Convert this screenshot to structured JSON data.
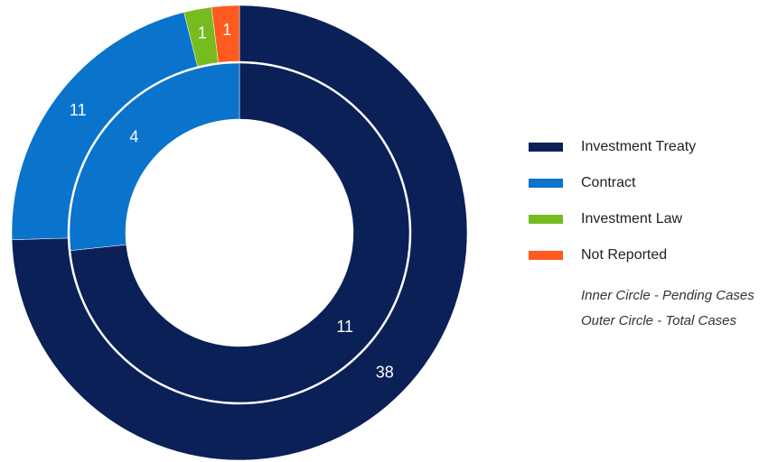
{
  "chart_data": {
    "type": "donut",
    "categories": [
      "Investment Treaty",
      "Contract",
      "Investment Law",
      "Not Reported"
    ],
    "colors": [
      "#0a2057",
      "#0a73cc",
      "#77bc1f",
      "#ff5a1f"
    ],
    "series": [
      {
        "values": [
          38,
          11,
          1,
          1
        ]
      },
      {
        "values": [
          11,
          4,
          null,
          null
        ]
      }
    ],
    "annotations": [
      "Inner Circle - Pending Cases",
      "Outer Circle - Total Cases"
    ]
  }
}
